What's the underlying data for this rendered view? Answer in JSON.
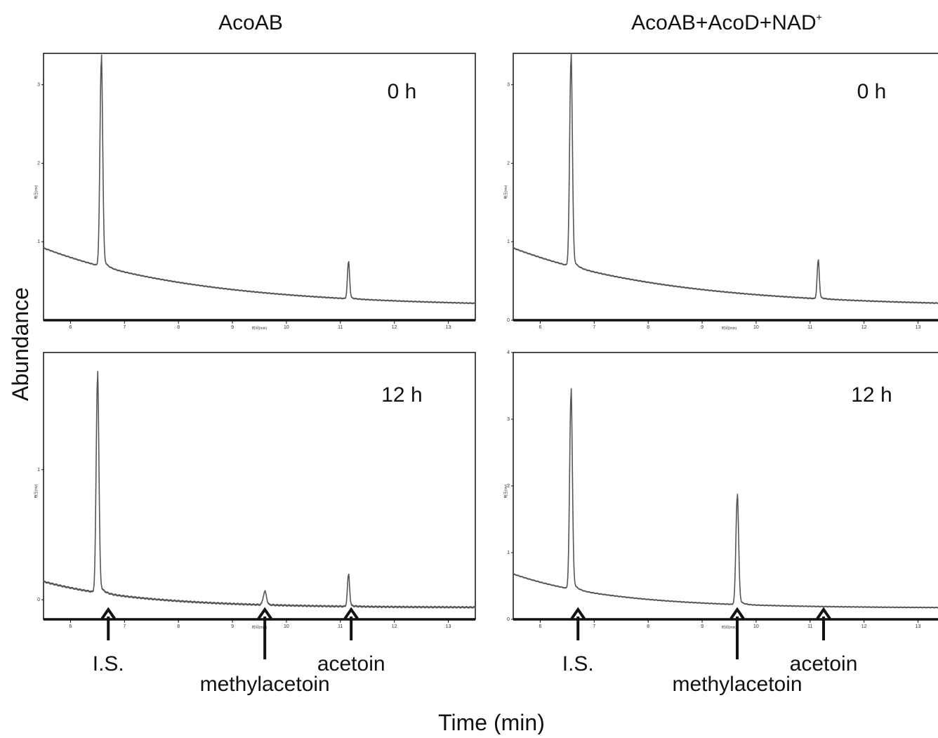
{
  "figure": {
    "columns": [
      {
        "title": "AcoAB",
        "superscript": ""
      },
      {
        "title": "AcoAB+AcoD+NAD",
        "superscript": "+"
      }
    ],
    "ylabel": "Abundance",
    "xlabel": "Time (min)",
    "panel_xlabel": "时间(min)",
    "panel_ylabel": "电压(mv)"
  },
  "chart_data": [
    {
      "type": "line",
      "label": "0 h",
      "column": "AcoAB",
      "x_ticks": [
        6,
        7,
        8,
        9,
        10,
        11,
        12,
        13
      ],
      "y_ticks": [
        1,
        2,
        3
      ],
      "xlim": [
        5.5,
        13.5
      ],
      "ylim": [
        0,
        3.4
      ],
      "baseline": {
        "y0": 0.92,
        "y1": 0.17,
        "k": 0.35
      },
      "peaks": [
        {
          "x": 6.57,
          "height": 2.6,
          "width": 0.025
        },
        {
          "x": 11.15,
          "height": 0.46,
          "width": 0.02
        }
      ],
      "arrows": []
    },
    {
      "type": "line",
      "label": "0 h",
      "column": "AcoAB+AcoD+NAD+",
      "x_ticks": [
        6,
        7,
        8,
        9,
        10,
        11,
        12,
        13
      ],
      "y_ticks": [
        0,
        1,
        2,
        3
      ],
      "xlim": [
        5.5,
        13.5
      ],
      "ylim": [
        0,
        3.4
      ],
      "baseline": {
        "y0": 0.92,
        "y1": 0.17,
        "k": 0.35
      },
      "peaks": [
        {
          "x": 6.57,
          "height": 2.62,
          "width": 0.025
        },
        {
          "x": 11.15,
          "height": 0.48,
          "width": 0.02
        }
      ],
      "arrows": []
    },
    {
      "type": "line",
      "label": "12 h",
      "column": "AcoAB",
      "x_ticks": [
        6,
        7,
        8,
        9,
        10,
        11,
        12,
        13
      ],
      "y_ticks": [
        0,
        1
      ],
      "xlim": [
        5.5,
        13.5
      ],
      "ylim": [
        -0.15,
        1.9
      ],
      "baseline": {
        "y0": 0.14,
        "y1": -0.06,
        "k": 0.55
      },
      "peaks": [
        {
          "x": 6.5,
          "height": 1.64,
          "width": 0.025
        },
        {
          "x": 9.6,
          "height": 0.1,
          "width": 0.03
        },
        {
          "x": 11.15,
          "height": 0.24,
          "width": 0.02
        }
      ],
      "arrows": [
        {
          "x": 6.7,
          "text": "I.S.",
          "row": 1
        },
        {
          "x": 9.6,
          "text": "methylacetoin",
          "row": 2
        },
        {
          "x": 11.2,
          "text": "acetoin",
          "row": 1
        }
      ]
    },
    {
      "type": "line",
      "label": "12 h",
      "column": "AcoAB+AcoD+NAD+",
      "x_ticks": [
        6,
        7,
        8,
        9,
        10,
        11,
        12,
        13
      ],
      "y_ticks": [
        0,
        1,
        2,
        3,
        4
      ],
      "xlim": [
        5.5,
        13.5
      ],
      "ylim": [
        0,
        4
      ],
      "baseline": {
        "y0": 0.68,
        "y1": 0.17,
        "k": 0.55
      },
      "peaks": [
        {
          "x": 6.57,
          "height": 2.9,
          "width": 0.025
        },
        {
          "x": 9.65,
          "height": 1.6,
          "width": 0.025
        }
      ],
      "arrows": [
        {
          "x": 6.7,
          "text": "I.S.",
          "row": 1
        },
        {
          "x": 9.65,
          "text": "methylacetoin",
          "row": 2
        },
        {
          "x": 11.25,
          "text": "acetoin",
          "row": 1
        }
      ]
    }
  ]
}
